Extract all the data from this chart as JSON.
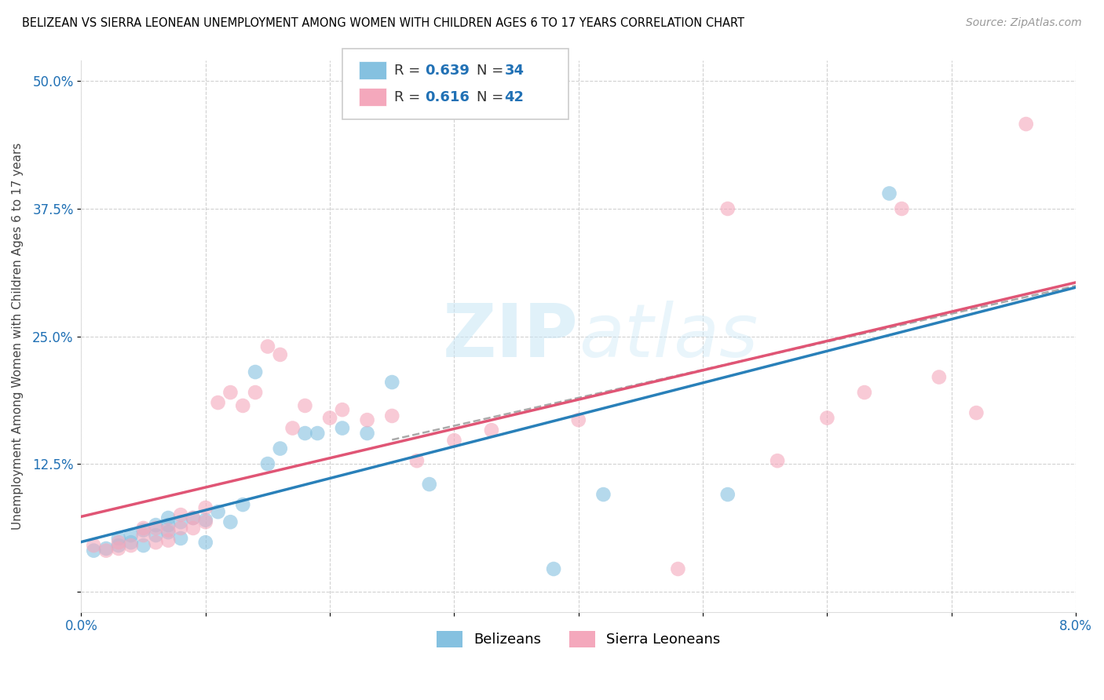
{
  "title": "BELIZEAN VS SIERRA LEONEAN UNEMPLOYMENT AMONG WOMEN WITH CHILDREN AGES 6 TO 17 YEARS CORRELATION CHART",
  "source": "Source: ZipAtlas.com",
  "ylabel": "Unemployment Among Women with Children Ages 6 to 17 years",
  "xlim": [
    0.0,
    0.08
  ],
  "ylim": [
    -0.02,
    0.52
  ],
  "xticks": [
    0.0,
    0.01,
    0.02,
    0.03,
    0.04,
    0.05,
    0.06,
    0.07,
    0.08
  ],
  "xticklabels": [
    "0.0%",
    "",
    "",
    "",
    "",
    "",
    "",
    "",
    "8.0%"
  ],
  "ytick_positions": [
    0.0,
    0.125,
    0.25,
    0.375,
    0.5
  ],
  "yticklabels": [
    "",
    "12.5%",
    "25.0%",
    "37.5%",
    "50.0%"
  ],
  "blue_color": "#85c1e0",
  "pink_color": "#f4a8bc",
  "blue_line_color": "#2980b9",
  "pink_line_color": "#e05575",
  "dash_color": "#aaaaaa",
  "grid_color": "#cccccc",
  "legend_R_blue": "0.639",
  "legend_N_blue": "34",
  "legend_R_pink": "0.616",
  "legend_N_pink": "42",
  "belizean_x": [
    0.001,
    0.002,
    0.003,
    0.003,
    0.004,
    0.004,
    0.005,
    0.005,
    0.006,
    0.006,
    0.007,
    0.007,
    0.007,
    0.008,
    0.008,
    0.009,
    0.01,
    0.01,
    0.011,
    0.012,
    0.013,
    0.014,
    0.015,
    0.016,
    0.018,
    0.019,
    0.021,
    0.023,
    0.025,
    0.028,
    0.038,
    0.042,
    0.052,
    0.065
  ],
  "belizean_y": [
    0.04,
    0.042,
    0.045,
    0.052,
    0.048,
    0.055,
    0.045,
    0.06,
    0.055,
    0.065,
    0.058,
    0.065,
    0.072,
    0.052,
    0.068,
    0.072,
    0.048,
    0.07,
    0.078,
    0.068,
    0.085,
    0.215,
    0.125,
    0.14,
    0.155,
    0.155,
    0.16,
    0.155,
    0.205,
    0.105,
    0.022,
    0.095,
    0.095,
    0.39
  ],
  "sierraleonean_x": [
    0.001,
    0.002,
    0.003,
    0.003,
    0.004,
    0.005,
    0.005,
    0.006,
    0.006,
    0.007,
    0.007,
    0.008,
    0.008,
    0.009,
    0.009,
    0.01,
    0.01,
    0.011,
    0.012,
    0.013,
    0.014,
    0.015,
    0.016,
    0.017,
    0.018,
    0.02,
    0.021,
    0.023,
    0.025,
    0.027,
    0.03,
    0.033,
    0.04,
    0.048,
    0.052,
    0.056,
    0.06,
    0.063,
    0.066,
    0.069,
    0.072,
    0.076
  ],
  "sierraleonean_y": [
    0.045,
    0.04,
    0.042,
    0.048,
    0.045,
    0.055,
    0.062,
    0.048,
    0.062,
    0.05,
    0.06,
    0.062,
    0.075,
    0.062,
    0.072,
    0.068,
    0.082,
    0.185,
    0.195,
    0.182,
    0.195,
    0.24,
    0.232,
    0.16,
    0.182,
    0.17,
    0.178,
    0.168,
    0.172,
    0.128,
    0.148,
    0.158,
    0.168,
    0.022,
    0.375,
    0.128,
    0.17,
    0.195,
    0.375,
    0.21,
    0.175,
    0.458
  ],
  "blue_line_start_y": 0.01,
  "blue_line_slope": 5.5,
  "pink_line_start_y": 0.02,
  "pink_line_slope": 6.2,
  "dash_line_start_y": 0.07,
  "dash_line_slope": 5.5
}
